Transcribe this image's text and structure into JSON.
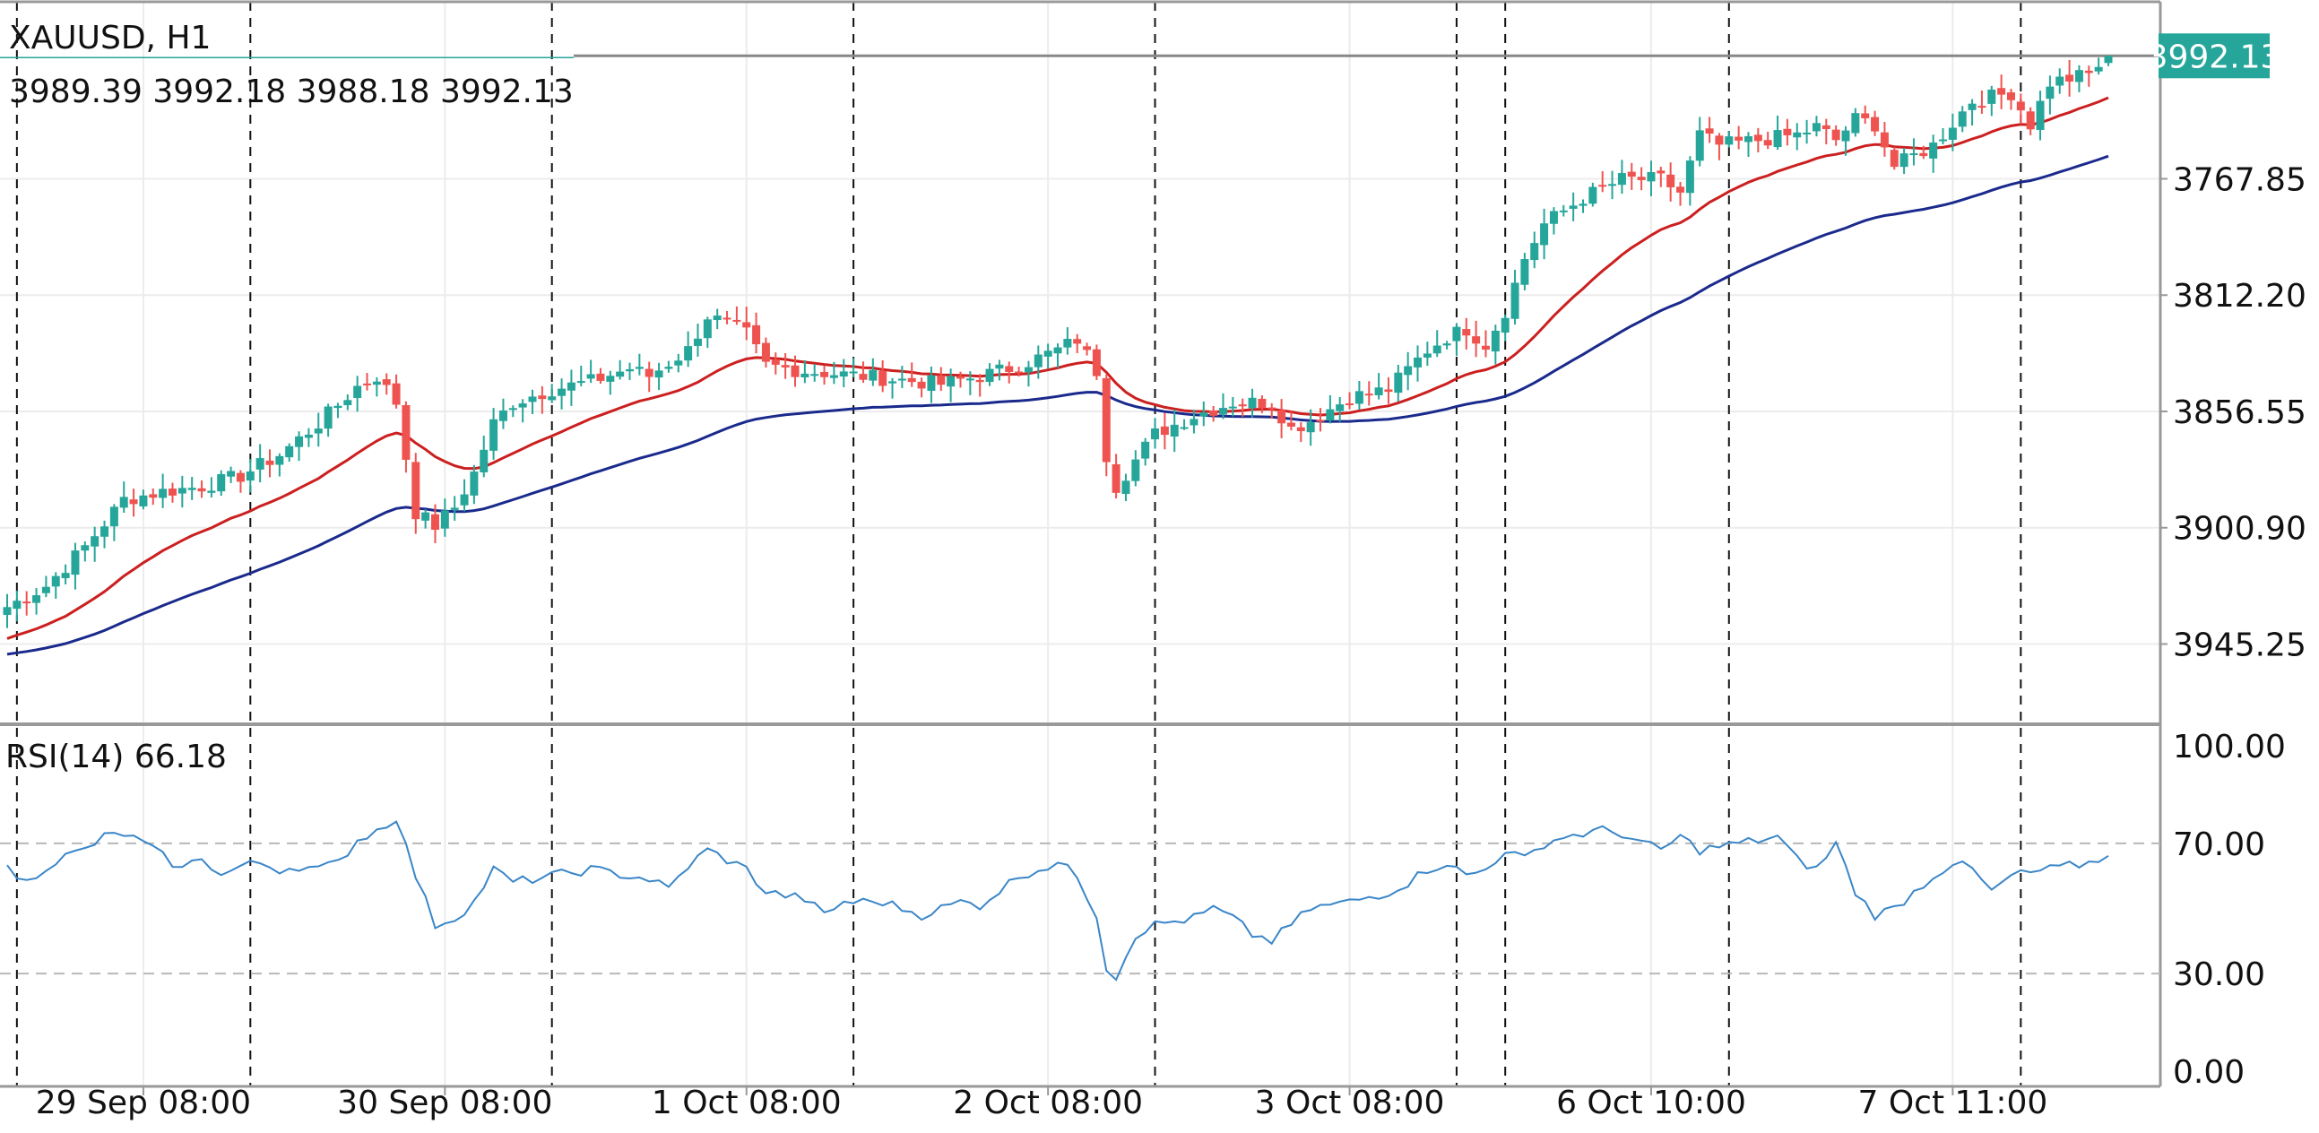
{
  "header": {
    "symbol": "XAUUSD, H1",
    "ohlc": "3989.39 3992.18 3988.18 3992.13"
  },
  "price_axis": {
    "ticks": [
      "3945.25",
      "3900.90",
      "3856.55",
      "3812.20",
      "3767.85"
    ],
    "current_price": "3992.13"
  },
  "rsi": {
    "label": "RSI(14) 66.18",
    "ticks": [
      "100.00",
      "70.00",
      "30.00",
      "0.00"
    ]
  },
  "time_axis": {
    "ticks": [
      "29 Sep 08:00",
      "30 Sep 08:00",
      "1 Oct 08:00",
      "2 Oct 08:00",
      "3 Oct 08:00",
      "6 Oct 10:00",
      "7 Oct 11:00"
    ]
  },
  "colors": {
    "bull": "#26a69a",
    "bear": "#ef5350",
    "ma_fast": "#cc1f1f",
    "ma_slow": "#1a2a8c",
    "rsi_line": "#3a86c8",
    "current_price_bg": "#26a69a",
    "grid": "#ececec",
    "separator": "#111111"
  },
  "chart_data": [
    {
      "type": "candlestick",
      "title": "XAUUSD, H1",
      "ylim": [
        3740,
        4010
      ],
      "y_ticks": [
        3767.85,
        3812.2,
        3856.55,
        3900.9,
        3945.25
      ],
      "current_price": 3992.13,
      "close_anchors": [
        [
          0,
          3782
        ],
        [
          4,
          3790
        ],
        [
          8,
          3805
        ],
        [
          12,
          3823
        ],
        [
          16,
          3826
        ],
        [
          20,
          3828
        ],
        [
          24,
          3832
        ],
        [
          28,
          3840
        ],
        [
          32,
          3852
        ],
        [
          36,
          3866
        ],
        [
          38,
          3870
        ],
        [
          40,
          3860
        ],
        [
          42,
          3818
        ],
        [
          44,
          3813
        ],
        [
          46,
          3820
        ],
        [
          48,
          3833
        ],
        [
          50,
          3852
        ],
        [
          52,
          3860
        ],
        [
          56,
          3865
        ],
        [
          60,
          3868
        ],
        [
          64,
          3873
        ],
        [
          66,
          3870
        ],
        [
          70,
          3880
        ],
        [
          72,
          3893
        ],
        [
          74,
          3890
        ],
        [
          76,
          3886
        ],
        [
          78,
          3874
        ],
        [
          82,
          3872
        ],
        [
          88,
          3870
        ],
        [
          96,
          3867
        ],
        [
          100,
          3870
        ],
        [
          104,
          3874
        ],
        [
          108,
          3880
        ],
        [
          110,
          3884
        ],
        [
          112,
          3872
        ],
        [
          113,
          3840
        ],
        [
          114,
          3828
        ],
        [
          118,
          3848
        ],
        [
          122,
          3855
        ],
        [
          126,
          3860
        ],
        [
          130,
          3860
        ],
        [
          132,
          3850
        ],
        [
          134,
          3853
        ],
        [
          138,
          3862
        ],
        [
          142,
          3865
        ],
        [
          146,
          3880
        ],
        [
          148,
          3885
        ],
        [
          150,
          3888
        ],
        [
          152,
          3882
        ],
        [
          154,
          3895
        ],
        [
          156,
          3915
        ],
        [
          158,
          3928
        ],
        [
          162,
          3938
        ],
        [
          166,
          3945
        ],
        [
          170,
          3945
        ],
        [
          172,
          3940
        ],
        [
          174,
          3962
        ],
        [
          176,
          3958
        ],
        [
          180,
          3960
        ],
        [
          184,
          3962
        ],
        [
          186,
          3965
        ],
        [
          188,
          3960
        ],
        [
          190,
          3968
        ],
        [
          192,
          3966
        ],
        [
          194,
          3950
        ],
        [
          198,
          3958
        ],
        [
          202,
          3975
        ],
        [
          206,
          3978
        ],
        [
          208,
          3966
        ],
        [
          210,
          3982
        ],
        [
          214,
          3985
        ],
        [
          216,
          3992
        ]
      ],
      "series": [
        {
          "name": "MA fast",
          "period": 21
        },
        {
          "name": "MA slow",
          "period": 50
        }
      ],
      "x_tick_labels": [
        "29 Sep 08:00",
        "30 Sep 08:00",
        "1 Oct 08:00",
        "2 Oct 08:00",
        "3 Oct 08:00",
        "6 Oct 10:00",
        "7 Oct 11:00"
      ],
      "x_tick_bars": [
        14,
        45,
        76,
        107,
        138,
        169,
        200
      ],
      "session_separator_bars": [
        1,
        25,
        56,
        87,
        118,
        149,
        154,
        177,
        207
      ],
      "grid": true
    },
    {
      "type": "line",
      "title": "RSI(14) 66.18",
      "ylim": [
        0,
        100
      ],
      "y_ticks": [
        0,
        30,
        70,
        100
      ],
      "levels": [
        30,
        70
      ],
      "anchors": [
        [
          0,
          62
        ],
        [
          2,
          58
        ],
        [
          4,
          63
        ],
        [
          6,
          66
        ],
        [
          8,
          68
        ],
        [
          10,
          72
        ],
        [
          12,
          73
        ],
        [
          14,
          70
        ],
        [
          16,
          66
        ],
        [
          18,
          62
        ],
        [
          20,
          66
        ],
        [
          22,
          60
        ],
        [
          24,
          63
        ],
        [
          26,
          64
        ],
        [
          28,
          62
        ],
        [
          30,
          63
        ],
        [
          32,
          62
        ],
        [
          34,
          64
        ],
        [
          36,
          71
        ],
        [
          38,
          74
        ],
        [
          40,
          78
        ],
        [
          42,
          60
        ],
        [
          44,
          45
        ],
        [
          46,
          47
        ],
        [
          48,
          52
        ],
        [
          50,
          62
        ],
        [
          52,
          58
        ],
        [
          56,
          60
        ],
        [
          60,
          62
        ],
        [
          64,
          60
        ],
        [
          66,
          59
        ],
        [
          68,
          56
        ],
        [
          70,
          63
        ],
        [
          72,
          68
        ],
        [
          74,
          65
        ],
        [
          76,
          62
        ],
        [
          78,
          55
        ],
        [
          80,
          54
        ],
        [
          82,
          53
        ],
        [
          84,
          48
        ],
        [
          86,
          52
        ],
        [
          90,
          52
        ],
        [
          94,
          48
        ],
        [
          98,
          52
        ],
        [
          100,
          51
        ],
        [
          104,
          60
        ],
        [
          108,
          64
        ],
        [
          110,
          60
        ],
        [
          112,
          48
        ],
        [
          113,
          32
        ],
        [
          114,
          29
        ],
        [
          116,
          42
        ],
        [
          118,
          45
        ],
        [
          122,
          47
        ],
        [
          124,
          50
        ],
        [
          126,
          47
        ],
        [
          128,
          42
        ],
        [
          130,
          40
        ],
        [
          132,
          45
        ],
        [
          134,
          50
        ],
        [
          138,
          52
        ],
        [
          142,
          55
        ],
        [
          144,
          58
        ],
        [
          146,
          62
        ],
        [
          148,
          64
        ],
        [
          150,
          60
        ],
        [
          152,
          62
        ],
        [
          154,
          68
        ],
        [
          156,
          65
        ],
        [
          158,
          70
        ],
        [
          160,
          72
        ],
        [
          162,
          73
        ],
        [
          164,
          74
        ],
        [
          166,
          73
        ],
        [
          168,
          70
        ],
        [
          170,
          68
        ],
        [
          172,
          72
        ],
        [
          174,
          68
        ],
        [
          178,
          70
        ],
        [
          182,
          72
        ],
        [
          184,
          65
        ],
        [
          186,
          62
        ],
        [
          188,
          70
        ],
        [
          190,
          55
        ],
        [
          192,
          48
        ],
        [
          194,
          50
        ],
        [
          196,
          55
        ],
        [
          198,
          60
        ],
        [
          200,
          64
        ],
        [
          202,
          62
        ],
        [
          204,
          55
        ],
        [
          206,
          60
        ],
        [
          210,
          62
        ],
        [
          214,
          64
        ],
        [
          216,
          66
        ]
      ],
      "grid": true
    }
  ]
}
